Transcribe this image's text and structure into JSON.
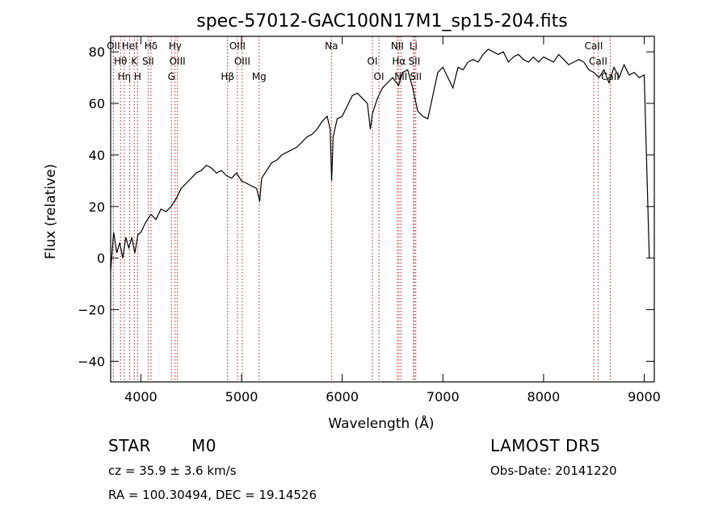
{
  "chart_data": {
    "type": "line",
    "title": "spec-57012-GAC100N17M1_sp15-204.fits",
    "xlabel": "Wavelength (Å)",
    "ylabel": "Flux (relative)",
    "xlim": [
      3700,
      9100
    ],
    "ylim": [
      -48,
      86
    ],
    "xticks": [
      4000,
      5000,
      6000,
      7000,
      8000,
      9000
    ],
    "yticks": [
      -40,
      -20,
      0,
      20,
      40,
      60,
      80
    ],
    "grid": false,
    "series": [
      {
        "values": [
          [
            3700,
            -5
          ],
          [
            3730,
            10
          ],
          [
            3760,
            2
          ],
          [
            3790,
            6
          ],
          [
            3820,
            0
          ],
          [
            3850,
            8
          ],
          [
            3880,
            4
          ],
          [
            3910,
            8
          ],
          [
            3940,
            2
          ],
          [
            3970,
            9
          ],
          [
            4000,
            10
          ],
          [
            4050,
            14
          ],
          [
            4100,
            17
          ],
          [
            4150,
            15
          ],
          [
            4200,
            19
          ],
          [
            4250,
            18
          ],
          [
            4300,
            20
          ],
          [
            4350,
            23
          ],
          [
            4400,
            27
          ],
          [
            4450,
            29
          ],
          [
            4500,
            31
          ],
          [
            4550,
            33
          ],
          [
            4600,
            34
          ],
          [
            4650,
            36
          ],
          [
            4700,
            35
          ],
          [
            4750,
            33
          ],
          [
            4800,
            34
          ],
          [
            4850,
            32
          ],
          [
            4900,
            31
          ],
          [
            4950,
            33
          ],
          [
            5000,
            30
          ],
          [
            5050,
            29
          ],
          [
            5100,
            28
          ],
          [
            5150,
            27
          ],
          [
            5180,
            22
          ],
          [
            5200,
            31
          ],
          [
            5250,
            34
          ],
          [
            5300,
            37
          ],
          [
            5350,
            38
          ],
          [
            5400,
            40
          ],
          [
            5450,
            41
          ],
          [
            5500,
            42
          ],
          [
            5550,
            43
          ],
          [
            5600,
            45
          ],
          [
            5650,
            47
          ],
          [
            5700,
            48
          ],
          [
            5750,
            50
          ],
          [
            5800,
            53
          ],
          [
            5850,
            55
          ],
          [
            5880,
            50
          ],
          [
            5895,
            30
          ],
          [
            5910,
            47
          ],
          [
            5950,
            54
          ],
          [
            6000,
            55
          ],
          [
            6050,
            59
          ],
          [
            6100,
            63
          ],
          [
            6150,
            64
          ],
          [
            6200,
            62
          ],
          [
            6250,
            60
          ],
          [
            6280,
            50
          ],
          [
            6300,
            56
          ],
          [
            6350,
            62
          ],
          [
            6400,
            66
          ],
          [
            6450,
            68
          ],
          [
            6500,
            70
          ],
          [
            6560,
            67
          ],
          [
            6600,
            72
          ],
          [
            6650,
            73
          ],
          [
            6700,
            66
          ],
          [
            6750,
            57
          ],
          [
            6800,
            55
          ],
          [
            6850,
            54
          ],
          [
            6900,
            63
          ],
          [
            6950,
            72
          ],
          [
            7000,
            74
          ],
          [
            7050,
            70
          ],
          [
            7100,
            66
          ],
          [
            7150,
            74
          ],
          [
            7200,
            73
          ],
          [
            7250,
            76
          ],
          [
            7300,
            77
          ],
          [
            7350,
            76
          ],
          [
            7400,
            79
          ],
          [
            7450,
            81
          ],
          [
            7500,
            80
          ],
          [
            7550,
            79
          ],
          [
            7600,
            80
          ],
          [
            7650,
            76
          ],
          [
            7700,
            78
          ],
          [
            7750,
            79
          ],
          [
            7800,
            77
          ],
          [
            7850,
            76
          ],
          [
            7900,
            78
          ],
          [
            7950,
            76
          ],
          [
            8000,
            78
          ],
          [
            8050,
            77
          ],
          [
            8100,
            76
          ],
          [
            8150,
            79
          ],
          [
            8200,
            77
          ],
          [
            8250,
            75
          ],
          [
            8300,
            76
          ],
          [
            8350,
            77
          ],
          [
            8400,
            76
          ],
          [
            8450,
            73
          ],
          [
            8500,
            72
          ],
          [
            8550,
            70
          ],
          [
            8600,
            73
          ],
          [
            8650,
            68
          ],
          [
            8700,
            74
          ],
          [
            8750,
            70
          ],
          [
            8800,
            75
          ],
          [
            8850,
            71
          ],
          [
            8900,
            72
          ],
          [
            8950,
            70
          ],
          [
            9000,
            71
          ],
          [
            9050,
            0
          ]
        ]
      }
    ],
    "lines": [
      {
        "label": "OII",
        "x": 3727
      },
      {
        "label": "Hθ",
        "x": 3798
      },
      {
        "label": "Hη",
        "x": 3835
      },
      {
        "label": "HeI",
        "x": 3889
      },
      {
        "label": "K",
        "x": 3934
      },
      {
        "label": "H",
        "x": 3968
      },
      {
        "label": "Hδ",
        "x": 4101
      },
      {
        "label": "SII",
        "x": 4072
      },
      {
        "label": "G",
        "x": 4304
      },
      {
        "label": "Hγ",
        "x": 4340
      },
      {
        "label": "OIII",
        "x": 4363
      },
      {
        "label": "Hβ",
        "x": 4861
      },
      {
        "label": "OIII",
        "x": 4959
      },
      {
        "label": "OIII",
        "x": 5007
      },
      {
        "label": "Mg",
        "x": 5175
      },
      {
        "label": "Na",
        "x": 5893
      },
      {
        "label": "OI",
        "x": 6300
      },
      {
        "label": "OI",
        "x": 6364
      },
      {
        "label": "NII",
        "x": 6548
      },
      {
        "label": "Hα",
        "x": 6563
      },
      {
        "label": "NII",
        "x": 6583
      },
      {
        "label": "Li",
        "x": 6708
      },
      {
        "label": "SII",
        "x": 6716
      },
      {
        "label": "SII",
        "x": 6731
      },
      {
        "label": "CaII",
        "x": 8498
      },
      {
        "label": "CaII",
        "x": 8542
      },
      {
        "label": "CaII",
        "x": 8662
      }
    ]
  },
  "info": {
    "class": "STAR",
    "subclass": "M0",
    "survey": "LAMOST DR5",
    "redshift": "cz = 35.9 ± 3.6 km/s",
    "obs_date": "Obs-Date: 20141220",
    "coords": "RA = 100.30494, DEC =  19.14526"
  },
  "colors": {
    "line": "#000000",
    "emission": "#b22222",
    "axis": "#000000"
  }
}
